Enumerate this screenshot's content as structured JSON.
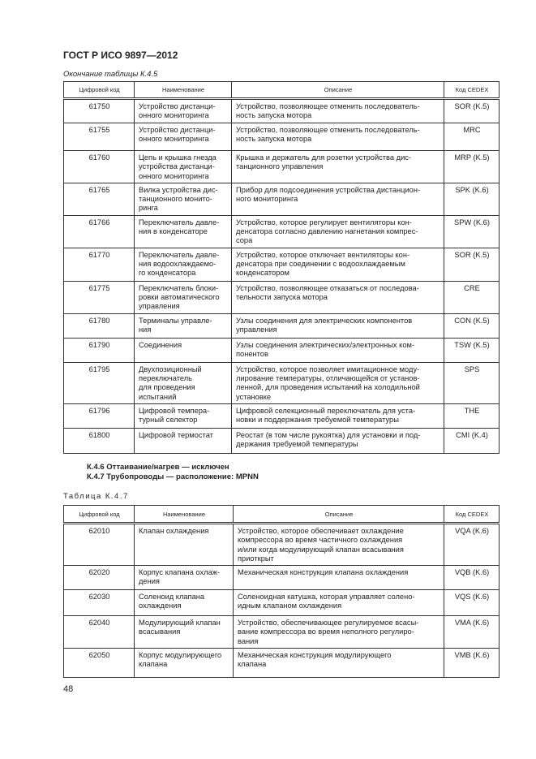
{
  "header": {
    "title": "ГОСТ Р ИСО 9897—2012"
  },
  "table1": {
    "caption": "Окончание таблицы К.4.5",
    "columns": [
      "Цифровой код",
      "Наименование",
      "Описание",
      "Код CEDEX"
    ],
    "rows": [
      [
        "61750",
        "Устройство дистанци-\nонного мониторинга",
        "Устройство, позволяющее отменить последователь-\nность запуска мотора",
        "SOR (K.5)"
      ],
      [
        "61755",
        "Устройство дистанци-\nонного мониторинга",
        "Устройство, позволяющее отменить последователь-\nность запуска мотора",
        "MRC"
      ],
      [
        "61760",
        "Цепь и крышка гнезда\nустройства дистанци-\nонного мониторинга",
        "Крышка и держатель для розетки устройства дис-\nтанционного управления",
        "MRP (K.5)"
      ],
      [
        "61765",
        "Вилка устройства дис-\nтанционного монито-\nринга",
        "Прибор для подсоединения устройства дистанцион-\nного мониторинга",
        "SPK (K.6)"
      ],
      [
        "61766",
        "Переключатель давле-\nния в конденсаторе",
        "Устройство, которое регулирует вентиляторы кон-\nденсатора согласно давлению нагнетания компрес-\nсора",
        "SPW (K.6)"
      ],
      [
        "61770",
        "Переключатель давле-\nния водоохлаждаемо-\nго конденсатора",
        "Устройство, которое отключает вентиляторы кон-\nденсатора при соединении с водоохлаждаемым\nконденсатором",
        "SOR (K.5)"
      ],
      [
        "61775",
        "Переключатель блоки-\nровки автоматического\nуправления",
        "Устройство, позволяющее отказаться от последова-\nтельности запуска мотора",
        "CRE"
      ],
      [
        "61780",
        "Терминалы управле-\nния",
        "Узлы соединения для электрических компонентов\nуправления",
        "CON (K.5)"
      ],
      [
        "61790",
        "Соединения",
        "Узлы соединения электрических/электронных ком-\nпонентов",
        "TSW (K.5)"
      ],
      [
        "61795",
        "Двухпозиционный\nпереключатель\nдля проведения\nиспытаний",
        "Устройство, которое позволяет имитационное моду-\nлирование температуры, отличающейся от установ-\nленной, для проведения испытаний на холодильной\nустановке",
        "SPS"
      ],
      [
        "61796",
        "Цифровой темпера-\nтурный селектор",
        "Цифровой селекционный переключатель для уста-\nновки и поддержания требуемой температуры",
        "THE"
      ],
      [
        "61800",
        "Цифровой термостат",
        "Реостат (в том числе рукоятка) для установки и под-\nдержания требуемой температуры",
        "CMI (K.4)"
      ]
    ]
  },
  "sections": [
    "К.4.6 Оттаивание/нагрев — исключен",
    "К.4.7 Трубопроводы — расположение: MPNN"
  ],
  "table2": {
    "caption": "Таблица К.4.7",
    "columns": [
      "Цифровой код",
      "Наименование",
      "Описание",
      "Код CEDEX"
    ],
    "rows": [
      [
        "62010",
        "Клапан охлаждения",
        "Устройство, которое обеспечивает охлаждение\nкомпрессора во время частичного охлаждения\nи/или когда модулирующий клапан всасывания\nприоткрыт",
        "VQA (K.6)"
      ],
      [
        "62020",
        "Корпус клапана охлаж-\nдения",
        "Механическая конструкция клапана охлаждения",
        "VQB (K.6)"
      ],
      [
        "62030",
        "Соленоид клапана\nохлаждения",
        "Соленоидная катушка, которая управляет солено-\nидным клапаном охлаждения",
        "VQS (K.6)"
      ],
      [
        "62040",
        "Модулирующий клапан\nвсасывания",
        "Устройство, обеспечивающее регулируемое всасы-\nвание компрессора во время неполного регулиро-\nвания",
        "VMA (K.6)"
      ],
      [
        "62050",
        "Корпус модулирующего\nклапана",
        "Механическая конструкция модулирующего\nклапана",
        "VMB (K.6)"
      ]
    ]
  },
  "footer": {
    "page_number": "48"
  }
}
